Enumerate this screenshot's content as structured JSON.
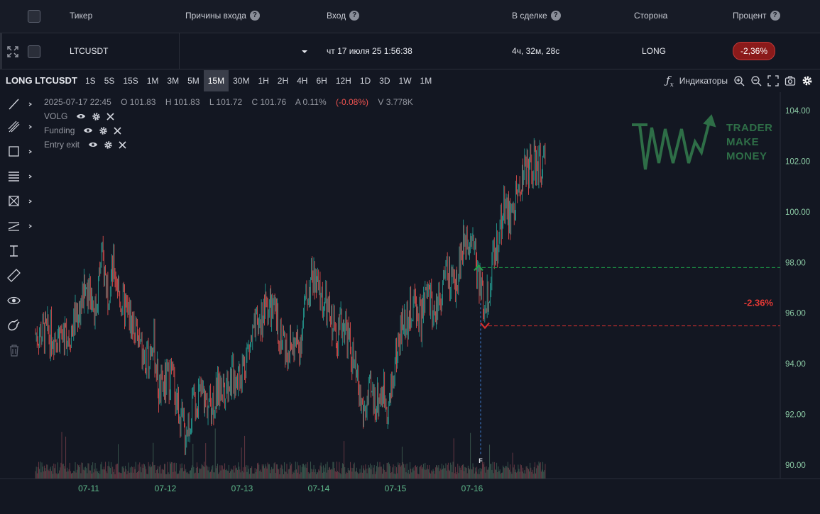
{
  "header": {
    "ticker": "Тикер",
    "reasons": "Причины входа",
    "entry": "Вход",
    "in_trade": "В сделке",
    "side": "Сторона",
    "percent": "Процент"
  },
  "trade": {
    "ticker": "LTCUSDT",
    "entry_time": "чт 17 июля 25 1:56:38",
    "duration": "4ч, 32м, 28с",
    "side": "LONG",
    "percent": "-2,36%"
  },
  "toolbar": {
    "symbol": "LONG LTCUSDT",
    "timeframes": [
      "1S",
      "5S",
      "15S",
      "1M",
      "3M",
      "5M",
      "15M",
      "30M",
      "1H",
      "2H",
      "4H",
      "6H",
      "12H",
      "1D",
      "3D",
      "1W",
      "1M"
    ],
    "active_timeframe": "15M",
    "indicators_label": "Индикаторы"
  },
  "legend": {
    "date": "2025-07-17 22:45",
    "open": "O 101.83",
    "high": "H 101.83",
    "low": "L 101.72",
    "close": "C 101.76",
    "amp": "A 0.11%",
    "change": "(-0.08%)",
    "volume": "V 3.778K",
    "indicators": [
      "VOLG",
      "Funding",
      "Entry exit"
    ]
  },
  "logo": {
    "line1": "TRADER",
    "line2": "MAKE",
    "line3": "MONEY"
  },
  "colors": {
    "up": "#26a69a",
    "down": "#ef5350",
    "bg": "#131722",
    "badge": "#8b1a1a",
    "entry": "#1e9e4a",
    "exit": "#d32f2f",
    "accent": "#2e6e47"
  },
  "chart_data": {
    "type": "candlestick",
    "symbol": "LTCUSDT",
    "x_ticks": [
      "07-11",
      "07-12",
      "07-13",
      "07-14",
      "07-15",
      "07-16"
    ],
    "y_ticks": [
      "104.00",
      "102.00",
      "100.00",
      "98.00",
      "96.00",
      "94.00",
      "92.00",
      "90.00"
    ],
    "ylim": [
      89.5,
      104.5
    ],
    "series_close": [
      {
        "x": "07-10 18:00",
        "y": 95.2
      },
      {
        "x": "07-10 22:00",
        "y": 96.5
      },
      {
        "x": "07-11 00:00",
        "y": 97.3
      },
      {
        "x": "07-11 02:00",
        "y": 96.0
      },
      {
        "x": "07-11 04:00",
        "y": 98.2
      },
      {
        "x": "07-11 06:00",
        "y": 97.0
      },
      {
        "x": "07-11 08:00",
        "y": 97.8
      },
      {
        "x": "07-11 10:00",
        "y": 96.5
      },
      {
        "x": "07-11 14:00",
        "y": 95.5
      },
      {
        "x": "07-11 18:00",
        "y": 93.8
      },
      {
        "x": "07-11 20:00",
        "y": 95.2
      },
      {
        "x": "07-11 22:00",
        "y": 92.8
      },
      {
        "x": "07-12 00:00",
        "y": 93.2
      },
      {
        "x": "07-12 02:00",
        "y": 93.6
      },
      {
        "x": "07-12 04:00",
        "y": 92.3
      },
      {
        "x": "07-12 06:00",
        "y": 91.2
      },
      {
        "x": "07-12 10:00",
        "y": 92.8
      },
      {
        "x": "07-12 14:00",
        "y": 92.4
      },
      {
        "x": "07-12 18:00",
        "y": 93.2
      },
      {
        "x": "07-12 22:00",
        "y": 93.6
      },
      {
        "x": "07-13 00:00",
        "y": 93.8
      },
      {
        "x": "07-13 02:00",
        "y": 94.6
      },
      {
        "x": "07-13 04:00",
        "y": 95.2
      },
      {
        "x": "07-13 06:00",
        "y": 95.8
      },
      {
        "x": "07-13 08:00",
        "y": 96.4
      },
      {
        "x": "07-13 10:00",
        "y": 95.9
      },
      {
        "x": "07-13 14:00",
        "y": 94.6
      },
      {
        "x": "07-13 18:00",
        "y": 94.8
      },
      {
        "x": "07-13 20:00",
        "y": 96.5
      },
      {
        "x": "07-13 22:00",
        "y": 97.5
      },
      {
        "x": "07-14 00:00",
        "y": 96.8
      },
      {
        "x": "07-14 02:00",
        "y": 96.3
      },
      {
        "x": "07-14 04:00",
        "y": 95.6
      },
      {
        "x": "07-14 06:00",
        "y": 95.3
      },
      {
        "x": "07-14 08:00",
        "y": 95.7
      },
      {
        "x": "07-14 10:00",
        "y": 94.5
      },
      {
        "x": "07-14 12:00",
        "y": 93.2
      },
      {
        "x": "07-14 14:00",
        "y": 92.0
      },
      {
        "x": "07-14 16:00",
        "y": 92.8
      },
      {
        "x": "07-14 18:00",
        "y": 92.5
      },
      {
        "x": "07-14 20:00",
        "y": 93.0
      },
      {
        "x": "07-14 22:00",
        "y": 92.3
      },
      {
        "x": "07-15 00:00",
        "y": 94.2
      },
      {
        "x": "07-15 02:00",
        "y": 95.5
      },
      {
        "x": "07-15 04:00",
        "y": 95.8
      },
      {
        "x": "07-15 06:00",
        "y": 96.4
      },
      {
        "x": "07-15 08:00",
        "y": 95.7
      },
      {
        "x": "07-15 10:00",
        "y": 96.8
      },
      {
        "x": "07-15 12:00",
        "y": 96.0
      },
      {
        "x": "07-15 14:00",
        "y": 96.8
      },
      {
        "x": "07-15 16:00",
        "y": 97.6
      },
      {
        "x": "07-15 18:00",
        "y": 96.8
      },
      {
        "x": "07-15 20:00",
        "y": 98.0
      },
      {
        "x": "07-15 22:00",
        "y": 99.0
      },
      {
        "x": "07-16 00:00",
        "y": 99.3
      },
      {
        "x": "07-16 02:00",
        "y": 97.4
      },
      {
        "x": "07-16 04:00",
        "y": 96.2
      },
      {
        "x": "07-16 06:00",
        "y": 97.6
      },
      {
        "x": "07-16 08:00",
        "y": 98.8
      },
      {
        "x": "07-16 10:00",
        "y": 100.4
      },
      {
        "x": "07-16 12:00",
        "y": 99.6
      },
      {
        "x": "07-16 14:00",
        "y": 100.6
      },
      {
        "x": "07-16 16:00",
        "y": 101.6
      },
      {
        "x": "07-16 18:00",
        "y": 101.8
      }
    ],
    "entry": {
      "label": "Entry",
      "price": 97.8,
      "x": "07-16 02:00"
    },
    "exit": {
      "label": "Exit",
      "price": 95.5,
      "x": "07-16 04:00"
    },
    "pnl_label": "-2.36%",
    "marker": "F"
  }
}
